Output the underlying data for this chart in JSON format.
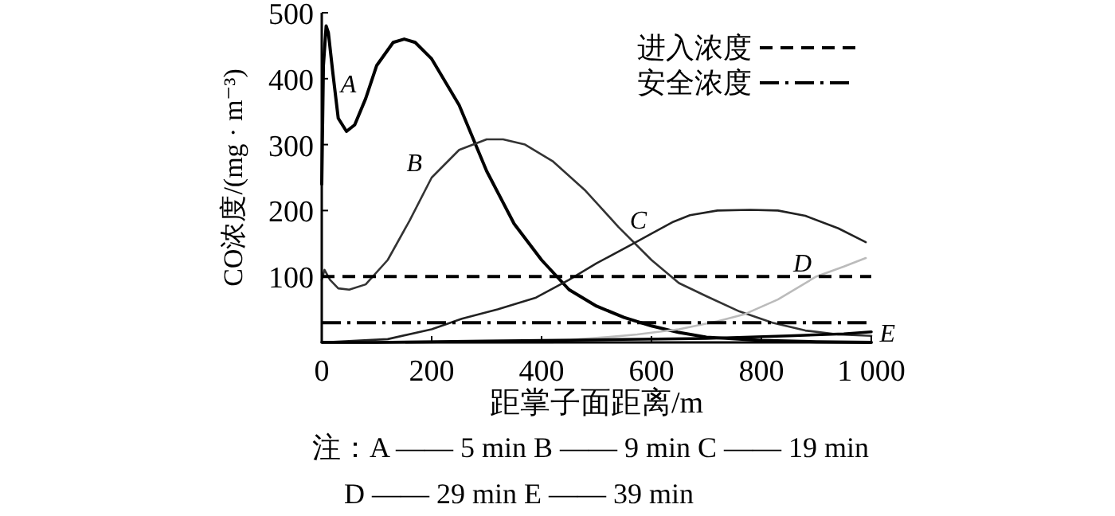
{
  "chart_data": {
    "type": "line",
    "xlabel": "距掌子面距离/m",
    "ylabel": "CO浓度/(mg · m⁻³)",
    "xlim": [
      0,
      1000
    ],
    "xticks": [
      0,
      200,
      400,
      600,
      800,
      {
        "value": 1000,
        "label": "1 000"
      }
    ],
    "ylim": [
      0,
      500
    ],
    "yticks": [
      100,
      200,
      300,
      400,
      500
    ],
    "grid": false,
    "legend": "top right",
    "marker": "none",
    "line_style": "solid",
    "series": [
      {
        "name": "A",
        "color": "#000000",
        "x": [
          0,
          3,
          8,
          12,
          20,
          30,
          45,
          60,
          80,
          100,
          130,
          150,
          170,
          200,
          250,
          300,
          350,
          400,
          450,
          500,
          550,
          600,
          650,
          700,
          800,
          900,
          1000
        ],
        "values": [
          240,
          420,
          480,
          470,
          410,
          340,
          320,
          330,
          370,
          420,
          455,
          460,
          455,
          430,
          360,
          260,
          180,
          125,
          80,
          55,
          38,
          25,
          15,
          8,
          3,
          1,
          0
        ]
      },
      {
        "name": "B",
        "color": "#333333",
        "x": [
          0,
          5,
          15,
          30,
          50,
          80,
          120,
          160,
          200,
          250,
          300,
          330,
          370,
          420,
          480,
          540,
          600,
          650,
          700,
          760,
          820,
          880,
          940,
          1000
        ],
        "values": [
          95,
          110,
          95,
          82,
          80,
          88,
          125,
          185,
          250,
          292,
          308,
          308,
          300,
          275,
          230,
          175,
          125,
          90,
          70,
          47,
          30,
          18,
          12,
          10
        ]
      },
      {
        "name": "C",
        "color": "#222222",
        "x": [
          0,
          120,
          200,
          255,
          320,
          390,
          450,
          500,
          565,
          600,
          640,
          670,
          720,
          780,
          830,
          880,
          940,
          990
        ],
        "values": [
          0,
          5,
          20,
          36,
          50,
          68,
          95,
          120,
          149,
          165,
          183,
          193,
          200,
          201,
          200,
          192,
          173,
          152
        ]
      },
      {
        "name": "D",
        "color": "#bbbbbb",
        "x": [
          0,
          420,
          470,
          520,
          574,
          650,
          720,
          770,
          830,
          900,
          950,
          990
        ],
        "values": [
          0,
          0,
          5,
          8,
          12,
          20,
          32,
          43,
          65,
          100,
          115,
          128
        ]
      },
      {
        "name": "E",
        "color": "#000000",
        "x": [
          0,
          100,
          300,
          500,
          700,
          850,
          950,
          1000
        ],
        "values": [
          0,
          0,
          2,
          4,
          6,
          10,
          13,
          16
        ]
      }
    ],
    "ref_lines": [
      {
        "axis": "y",
        "value": 100,
        "label": "进入浓度",
        "line_style": "dashed",
        "color": "#000000"
      },
      {
        "axis": "y",
        "value": 30,
        "label": "安全浓度",
        "line_style": "dashdot",
        "color": "#000000"
      }
    ],
    "annotations": [
      "注：A —— 5 min    B —— 9 min    C —— 19 min",
      "D —— 29 min   E —— 39 min"
    ]
  }
}
